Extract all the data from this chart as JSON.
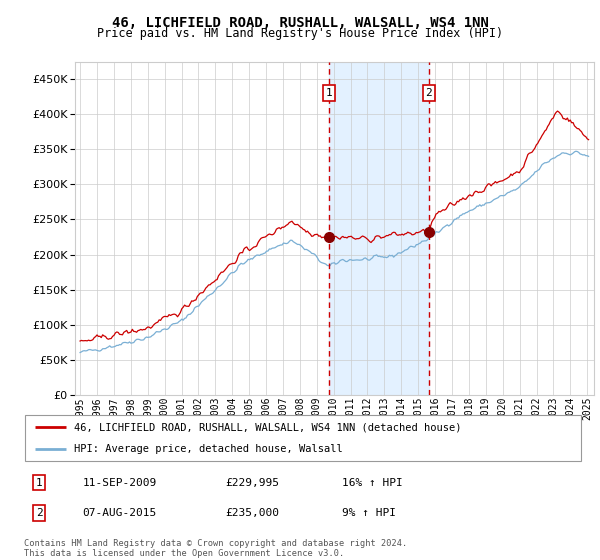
{
  "title": "46, LICHFIELD ROAD, RUSHALL, WALSALL, WS4 1NN",
  "subtitle": "Price paid vs. HM Land Registry's House Price Index (HPI)",
  "ylim": [
    0,
    475000
  ],
  "yticks": [
    0,
    50000,
    100000,
    150000,
    200000,
    250000,
    300000,
    350000,
    400000,
    450000
  ],
  "background_color": "#ffffff",
  "grid_color": "#cccccc",
  "sale1_label": "1",
  "sale2_label": "2",
  "sale1_price": 229995,
  "sale2_price": 235000,
  "legend_line1": "46, LICHFIELD ROAD, RUSHALL, WALSALL, WS4 1NN (detached house)",
  "legend_line2": "HPI: Average price, detached house, Walsall",
  "table_row1": [
    "1",
    "11-SEP-2009",
    "£229,995",
    "16% ↑ HPI"
  ],
  "table_row2": [
    "2",
    "07-AUG-2015",
    "£235,000",
    "9% ↑ HPI"
  ],
  "footer": "Contains HM Land Registry data © Crown copyright and database right 2024.\nThis data is licensed under the Open Government Licence v3.0.",
  "line_color_red": "#cc0000",
  "line_color_blue": "#7aafd4",
  "shade_color": "#ddeeff",
  "marker_color_red": "#880000",
  "dashed_color": "#cc0000",
  "start_year": 1995,
  "end_year": 2025
}
